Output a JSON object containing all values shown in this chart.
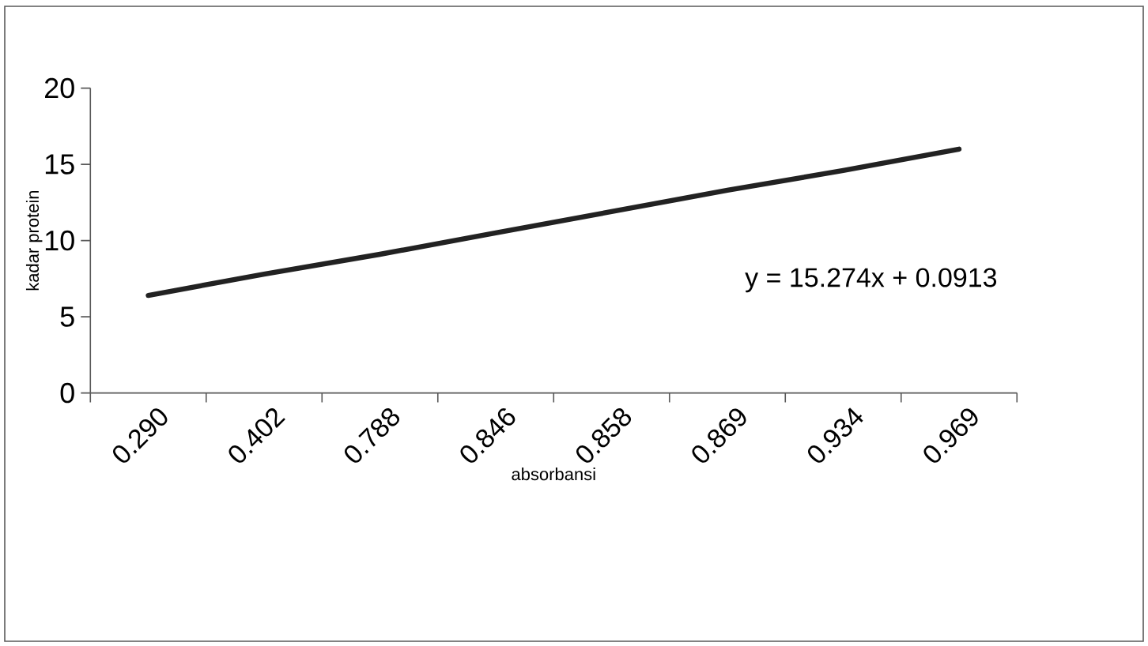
{
  "chart_data": {
    "type": "line",
    "xlabel": "absorbansi",
    "ylabel": "kadar protein",
    "categories": [
      "0.290",
      "0.402",
      "0.788",
      "0.846",
      "0.858",
      "0.869",
      "0.934",
      "0.969"
    ],
    "series": [
      {
        "color": "#222222",
        "values": [
          6.4,
          7.8,
          9.1,
          10.5,
          11.9,
          13.3,
          14.6,
          16.0
        ]
      }
    ],
    "ylim": [
      0,
      20
    ],
    "yticks": [
      0,
      5,
      10,
      15,
      20
    ],
    "annotations": [
      "y = 15.274x + 0.0913"
    ]
  }
}
